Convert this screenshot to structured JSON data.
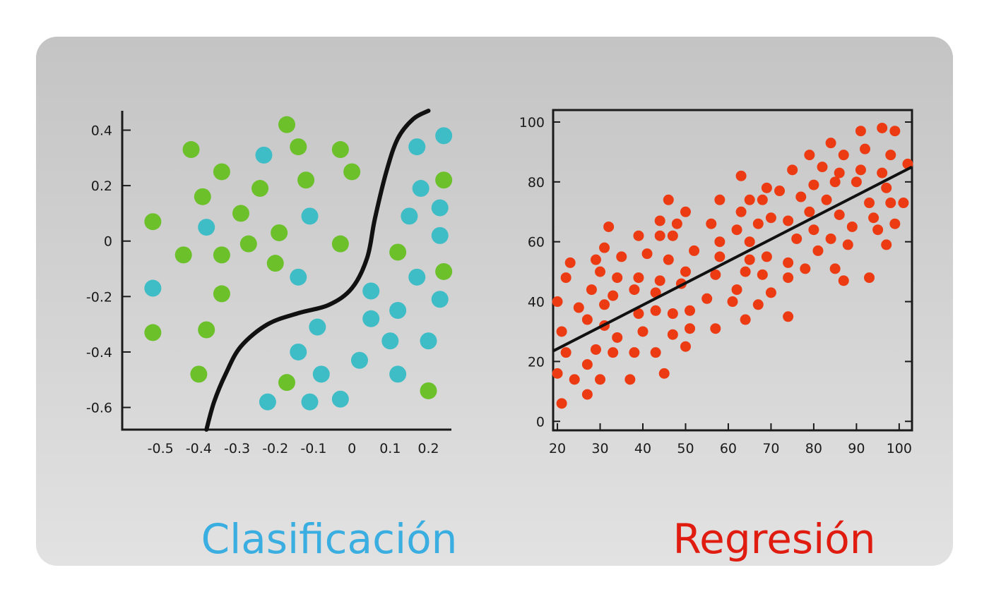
{
  "colors": {
    "classification_caption": "#3aaee0",
    "regression_caption": "#e01b10",
    "class_a": "#6cc02a",
    "class_b": "#3ebdc6",
    "regression_points": "#ec3b13",
    "curve": "#111111"
  },
  "captions": {
    "left": "Clasificación",
    "right": "Regresión"
  },
  "chart_data": [
    {
      "type": "scatter",
      "title": "",
      "xlabel": "",
      "ylabel": "",
      "grid": false,
      "xlim": [
        -0.6,
        0.26
      ],
      "ylim": [
        -0.68,
        0.47
      ],
      "xticks": [
        "-0.5",
        "-0.4",
        "-0.3",
        "-0.2",
        "-0.1",
        "0",
        "0.1",
        "0.2"
      ],
      "yticks": [
        "0.4",
        "0.2",
        "0",
        "-0.2",
        "-0.4",
        "-0.6"
      ],
      "series": [
        {
          "class": "a",
          "color": "#6cc02a",
          "points": [
            [
              -0.52,
              0.07
            ],
            [
              -0.44,
              -0.05
            ],
            [
              -0.42,
              0.33
            ],
            [
              -0.39,
              0.16
            ],
            [
              -0.34,
              0.25
            ],
            [
              -0.34,
              -0.05
            ],
            [
              -0.34,
              -0.19
            ],
            [
              -0.29,
              0.1
            ],
            [
              -0.27,
              -0.01
            ],
            [
              -0.24,
              0.19
            ],
            [
              -0.2,
              -0.08
            ],
            [
              -0.19,
              0.03
            ],
            [
              -0.17,
              0.42
            ],
            [
              -0.14,
              0.34
            ],
            [
              -0.12,
              0.22
            ],
            [
              -0.03,
              0.33
            ],
            [
              -0.03,
              -0.01
            ],
            [
              0.0,
              0.25
            ],
            [
              -0.52,
              -0.33
            ],
            [
              -0.38,
              -0.32
            ],
            [
              -0.4,
              -0.48
            ],
            [
              -0.17,
              -0.51
            ],
            [
              0.12,
              -0.04
            ],
            [
              0.2,
              -0.54
            ],
            [
              0.24,
              0.22
            ],
            [
              0.24,
              -0.11
            ]
          ]
        },
        {
          "class": "b",
          "color": "#3ebdc6",
          "points": [
            [
              -0.52,
              -0.17
            ],
            [
              -0.38,
              0.05
            ],
            [
              -0.23,
              0.31
            ],
            [
              -0.11,
              0.09
            ],
            [
              -0.14,
              -0.13
            ],
            [
              -0.09,
              -0.31
            ],
            [
              -0.14,
              -0.4
            ],
            [
              -0.08,
              -0.48
            ],
            [
              -0.22,
              -0.58
            ],
            [
              -0.11,
              -0.58
            ],
            [
              -0.03,
              -0.57
            ],
            [
              0.02,
              -0.43
            ],
            [
              0.05,
              -0.18
            ],
            [
              0.05,
              -0.28
            ],
            [
              0.1,
              -0.36
            ],
            [
              0.12,
              -0.25
            ],
            [
              0.15,
              0.09
            ],
            [
              0.17,
              0.34
            ],
            [
              0.18,
              0.19
            ],
            [
              0.17,
              -0.13
            ],
            [
              0.2,
              -0.36
            ],
            [
              0.23,
              0.12
            ],
            [
              0.23,
              0.02
            ],
            [
              0.23,
              -0.21
            ],
            [
              0.24,
              0.38
            ],
            [
              0.12,
              -0.48
            ]
          ]
        }
      ],
      "boundary_curve": [
        [
          -0.38,
          -0.68
        ],
        [
          -0.36,
          -0.58
        ],
        [
          -0.33,
          -0.48
        ],
        [
          -0.29,
          -0.38
        ],
        [
          -0.22,
          -0.3
        ],
        [
          -0.14,
          -0.26
        ],
        [
          -0.06,
          -0.23
        ],
        [
          0.0,
          -0.17
        ],
        [
          0.04,
          -0.06
        ],
        [
          0.06,
          0.08
        ],
        [
          0.09,
          0.25
        ],
        [
          0.12,
          0.37
        ],
        [
          0.16,
          0.44
        ],
        [
          0.2,
          0.47
        ]
      ]
    },
    {
      "type": "scatter",
      "title": "",
      "xlabel": "",
      "ylabel": "",
      "grid": false,
      "xlim": [
        19,
        103
      ],
      "ylim": [
        -3,
        104
      ],
      "xticks": [
        "20",
        "30",
        "40",
        "50",
        "60",
        "70",
        "80",
        "90",
        "100"
      ],
      "yticks": [
        "100",
        "80",
        "60",
        "40",
        "20",
        "0"
      ],
      "points": [
        [
          20,
          16
        ],
        [
          20,
          40
        ],
        [
          21,
          6
        ],
        [
          21,
          30
        ],
        [
          22,
          23
        ],
        [
          22,
          48
        ],
        [
          23,
          53
        ],
        [
          24,
          14
        ],
        [
          25,
          38
        ],
        [
          27,
          9
        ],
        [
          27,
          19
        ],
        [
          27,
          34
        ],
        [
          28,
          44
        ],
        [
          29,
          54
        ],
        [
          29,
          24
        ],
        [
          30,
          50
        ],
        [
          30,
          14
        ],
        [
          31,
          39
        ],
        [
          31,
          32
        ],
        [
          31,
          58
        ],
        [
          32,
          65
        ],
        [
          33,
          42
        ],
        [
          33,
          23
        ],
        [
          34,
          48
        ],
        [
          34,
          28
        ],
        [
          35,
          55
        ],
        [
          37,
          14
        ],
        [
          38,
          44
        ],
        [
          38,
          23
        ],
        [
          39,
          36
        ],
        [
          39,
          48
        ],
        [
          39,
          62
        ],
        [
          40,
          30
        ],
        [
          41,
          56
        ],
        [
          43,
          23
        ],
        [
          43,
          37
        ],
        [
          43,
          43
        ],
        [
          44,
          47
        ],
        [
          44,
          62
        ],
        [
          44,
          67
        ],
        [
          45,
          16
        ],
        [
          46,
          54
        ],
        [
          46,
          74
        ],
        [
          47,
          36
        ],
        [
          47,
          29
        ],
        [
          47,
          62
        ],
        [
          48,
          66
        ],
        [
          49,
          46
        ],
        [
          50,
          25
        ],
        [
          50,
          50
        ],
        [
          50,
          70
        ],
        [
          51,
          37
        ],
        [
          51,
          31
        ],
        [
          52,
          57
        ],
        [
          55,
          41
        ],
        [
          56,
          66
        ],
        [
          57,
          49
        ],
        [
          57,
          31
        ],
        [
          58,
          55
        ],
        [
          58,
          60
        ],
        [
          58,
          74
        ],
        [
          61,
          40
        ],
        [
          62,
          44
        ],
        [
          62,
          64
        ],
        [
          63,
          70
        ],
        [
          63,
          82
        ],
        [
          64,
          34
        ],
        [
          64,
          50
        ],
        [
          65,
          54
        ],
        [
          65,
          60
        ],
        [
          65,
          74
        ],
        [
          67,
          39
        ],
        [
          67,
          66
        ],
        [
          68,
          49
        ],
        [
          68,
          74
        ],
        [
          69,
          55
        ],
        [
          69,
          78
        ],
        [
          70,
          43
        ],
        [
          70,
          68
        ],
        [
          72,
          77
        ],
        [
          74,
          35
        ],
        [
          74,
          48
        ],
        [
          74,
          53
        ],
        [
          74,
          67
        ],
        [
          75,
          84
        ],
        [
          76,
          61
        ],
        [
          77,
          75
        ],
        [
          78,
          51
        ],
        [
          79,
          70
        ],
        [
          79,
          89
        ],
        [
          80,
          64
        ],
        [
          80,
          79
        ],
        [
          81,
          57
        ],
        [
          82,
          85
        ],
        [
          83,
          74
        ],
        [
          84,
          93
        ],
        [
          84,
          61
        ],
        [
          85,
          51
        ],
        [
          85,
          80
        ],
        [
          86,
          69
        ],
        [
          86,
          83
        ],
        [
          87,
          47
        ],
        [
          87,
          89
        ],
        [
          88,
          59
        ],
        [
          89,
          65
        ],
        [
          90,
          80
        ],
        [
          91,
          84
        ],
        [
          91,
          97
        ],
        [
          92,
          91
        ],
        [
          93,
          73
        ],
        [
          93,
          48
        ],
        [
          94,
          68
        ],
        [
          95,
          64
        ],
        [
          96,
          83
        ],
        [
          96,
          98
        ],
        [
          97,
          78
        ],
        [
          97,
          59
        ],
        [
          98,
          73
        ],
        [
          98,
          89
        ],
        [
          99,
          97
        ],
        [
          99,
          66
        ],
        [
          101,
          73
        ],
        [
          102,
          86
        ]
      ],
      "fit_line": [
        [
          19,
          23.5
        ],
        [
          103,
          85
        ]
      ]
    }
  ]
}
